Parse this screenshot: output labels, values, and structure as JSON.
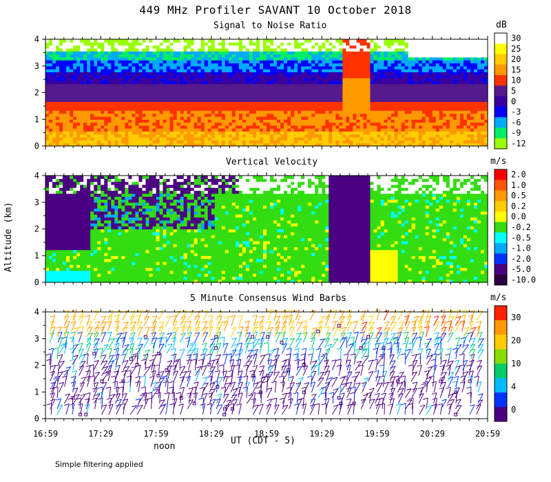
{
  "page": {
    "title": "449 MHz Profiler SAVANT 10 October 2018",
    "ylabel": "Altitude (km)",
    "xlabel": "UT (CDT - 5)",
    "noon_label": "noon",
    "footnote": "Simple filtering applied"
  },
  "chart_data": [
    {
      "type": "heatmap",
      "title": "Signal to Noise Ratio",
      "ylabel": "Altitude (km)",
      "y_ticks": [
        "0",
        "1",
        "2",
        "3",
        "4"
      ],
      "ylim": [
        0,
        4
      ],
      "x_ticks": [
        "16:59",
        "17:29",
        "17:59",
        "18:29",
        "18:59",
        "19:29",
        "19:59",
        "20:29",
        "20:59"
      ],
      "colorbar": {
        "unit": "dB",
        "labels": [
          "30",
          "25",
          "20",
          "15",
          "10",
          "5",
          "0",
          "-3",
          "-6",
          "-9",
          "-12"
        ],
        "colors": [
          "#ffffff",
          "#ffff00",
          "#ffcc00",
          "#ff9900",
          "#ff3300",
          "#551a8b",
          "#3a00a0",
          "#0000ff",
          "#00aaff",
          "#00ee66",
          "#99ff00"
        ]
      }
    },
    {
      "type": "heatmap",
      "title": "Vertical Velocity",
      "ylabel": "Altitude (km)",
      "y_ticks": [
        "0",
        "1",
        "2",
        "3",
        "4"
      ],
      "ylim": [
        0,
        4
      ],
      "x_ticks": [
        "16:59",
        "17:29",
        "17:59",
        "18:29",
        "18:59",
        "19:29",
        "19:59",
        "20:29",
        "20:59"
      ],
      "colorbar": {
        "unit": "m/s",
        "labels": [
          "2.0",
          "1.0",
          "0.5",
          "0.2",
          "0.0",
          "-0.2",
          "-0.5",
          "-1.0",
          "-2.0",
          "-5.0",
          "-10.0"
        ],
        "colors": [
          "#ff0000",
          "#ff5500",
          "#ff9900",
          "#ffcc00",
          "#ffff00",
          "#33dd11",
          "#00ffff",
          "#00aaff",
          "#0033ff",
          "#4b0082",
          "#2a0040"
        ]
      }
    },
    {
      "type": "scatter",
      "title": "5 Minute Consensus Wind Barbs",
      "ylabel": "Altitude (km)",
      "y_ticks": [
        "0",
        "1",
        "2",
        "3",
        "4"
      ],
      "ylim": [
        0,
        4
      ],
      "x_ticks": [
        "16:59",
        "17:29",
        "17:59",
        "18:29",
        "18:59",
        "19:29",
        "19:59",
        "20:29",
        "20:59"
      ],
      "colorbar": {
        "unit": "m/s",
        "labels": [
          "30",
          "20",
          "10",
          "4",
          "0"
        ],
        "colors": [
          "#ff2200",
          "#ff9900",
          "#ffcc00",
          "#88dd00",
          "#00cc66",
          "#00bbff",
          "#0033ff",
          "#4b0082"
        ]
      }
    }
  ]
}
